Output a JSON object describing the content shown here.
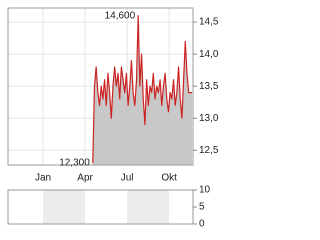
{
  "chart_data": {
    "type": "area-line",
    "color": "#cc2222",
    "fill": "#c8c8c8",
    "grid": true,
    "x": [
      3.55,
      3.67,
      3.79,
      3.91,
      4.03,
      4.15,
      4.27,
      4.39,
      4.51,
      4.63,
      4.75,
      4.87,
      4.99,
      5.11,
      5.23,
      5.35,
      5.47,
      5.59,
      5.71,
      5.83,
      5.95,
      6.07,
      6.19,
      6.31,
      6.43,
      6.55,
      6.67,
      6.79,
      6.91,
      7.03,
      7.15,
      7.27,
      7.39,
      7.51,
      7.63,
      7.75,
      7.87,
      7.99,
      8.11,
      8.23,
      8.35,
      8.47,
      8.59,
      8.71,
      8.83,
      8.95,
      9.07,
      9.19,
      9.31,
      9.43,
      9.55,
      9.67,
      9.79,
      9.91,
      10.03,
      10.15,
      10.27,
      10.39,
      10.51,
      10.63
    ],
    "values": [
      12.3,
      13.5,
      13.8,
      13.4,
      13.2,
      13.5,
      13.3,
      13.6,
      13.2,
      13.7,
      13.4,
      13.0,
      13.5,
      13.8,
      13.5,
      13.7,
      13.3,
      13.8,
      13.6,
      13.4,
      13.7,
      13.2,
      13.5,
      13.9,
      13.4,
      13.2,
      13.6,
      14.6,
      13.5,
      14.0,
      13.3,
      12.9,
      13.6,
      13.2,
      13.5,
      13.4,
      13.7,
      13.3,
      13.5,
      13.4,
      13.6,
      13.2,
      13.5,
      13.7,
      13.3,
      13.1,
      13.4,
      13.3,
      13.6,
      13.2,
      13.4,
      13.8,
      13.3,
      13.0,
      13.6,
      14.2,
      13.7,
      13.4,
      13.4,
      13.4
    ],
    "xlim": [
      -2.5,
      10.7
    ],
    "xticks": [
      {
        "value": 0,
        "label": "Jan"
      },
      {
        "value": 3,
        "label": "Apr"
      },
      {
        "value": 6,
        "label": "Jul"
      },
      {
        "value": 9,
        "label": "Okt"
      }
    ],
    "ylim": [
      12.27,
      14.72
    ],
    "yticks": [
      {
        "value": 12.5,
        "label": "12,5"
      },
      {
        "value": 13.0,
        "label": "13,0"
      },
      {
        "value": 13.5,
        "label": "13,5"
      },
      {
        "value": 14.0,
        "label": "14,0"
      },
      {
        "value": 14.5,
        "label": "14,5"
      }
    ],
    "annotations": [
      {
        "label": "14,600",
        "value": 14.6,
        "x": 6.79
      },
      {
        "label": "12,300",
        "value": 12.3,
        "x": 3.55
      }
    ],
    "volume": {
      "ylim": [
        0,
        10
      ],
      "yticks": [
        0,
        5,
        10
      ]
    }
  }
}
